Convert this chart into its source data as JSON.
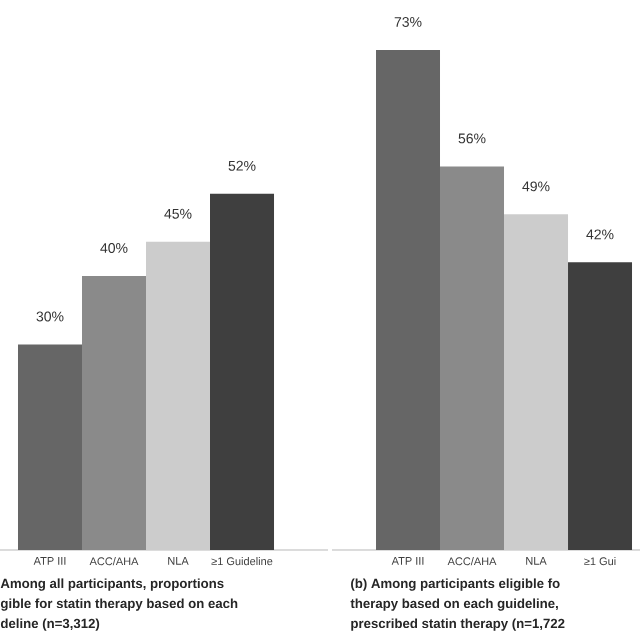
{
  "chart_data": [
    {
      "type": "bar",
      "categories": [
        "ATP III",
        "ACC/AHA",
        "NLA",
        "≥1 Guideline"
      ],
      "values": [
        30,
        40,
        45,
        52
      ],
      "colors": [
        "#666666",
        "#8a8a8a",
        "#cccccc",
        "#3f3f3f"
      ],
      "value_labels": [
        "30%",
        "40%",
        "45%",
        "52%"
      ],
      "annotations": [
        "Among all participants, proportions",
        "gible for statin therapy based on each",
        "deline (n=3,312)"
      ]
    },
    {
      "type": "bar",
      "categories": [
        "ATP III",
        "ACC/AHA",
        "NLA",
        "≥1 Gui"
      ],
      "values": [
        73,
        56,
        49,
        42
      ],
      "colors": [
        "#666666",
        "#8a8a8a",
        "#cccccc",
        "#3f3f3f"
      ],
      "value_labels": [
        "73%",
        "56%",
        "49%",
        "42%"
      ],
      "annotations": [
        "(b) Among participants eligible fo",
        "therapy based on each guideline,",
        "prescribed statin therapy (n=1,722"
      ]
    }
  ]
}
